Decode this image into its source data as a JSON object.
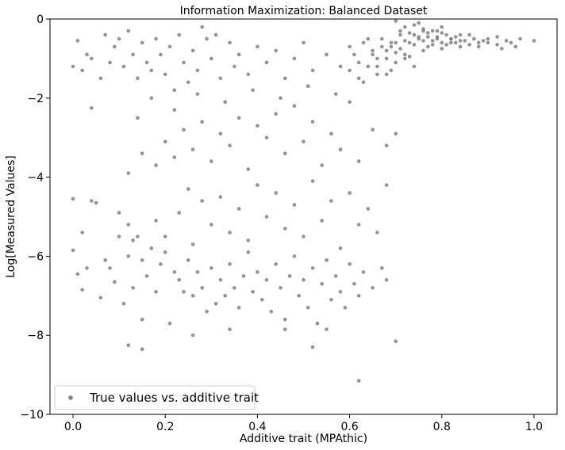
{
  "chart_data": {
    "type": "scatter",
    "title": "Information Maximization: Balanced Dataset",
    "xlabel": "Additive trait (MPAthic)",
    "ylabel": "Log[Measured Values]",
    "xlim": [
      -0.05,
      1.05
    ],
    "ylim": [
      -10,
      0
    ],
    "xticks": [
      {
        "value": 0.0,
        "label": "0.0"
      },
      {
        "value": 0.2,
        "label": "0.2"
      },
      {
        "value": 0.4,
        "label": "0.4"
      },
      {
        "value": 0.6,
        "label": "0.6"
      },
      {
        "value": 0.8,
        "label": "0.8"
      },
      {
        "value": 1.0,
        "label": "1.0"
      }
    ],
    "yticks": [
      {
        "value": 0,
        "label": "0"
      },
      {
        "value": -2,
        "label": "−2"
      },
      {
        "value": -4,
        "label": "−4"
      },
      {
        "value": -6,
        "label": "−6"
      },
      {
        "value": -8,
        "label": "−8"
      },
      {
        "value": -10,
        "label": "−10"
      }
    ],
    "grid": false,
    "legend_position": "lower-left",
    "series": [
      {
        "name": "True values vs. additive trait",
        "color": "#808080",
        "points": [
          [
            0.0,
            -5.85
          ],
          [
            0.0,
            -4.55
          ],
          [
            0.01,
            -6.45
          ],
          [
            0.02,
            -6.85
          ],
          [
            0.02,
            -5.4
          ],
          [
            0.04,
            -4.6
          ],
          [
            0.05,
            -4.65
          ],
          [
            0.03,
            -6.3
          ],
          [
            0.07,
            -6.1
          ],
          [
            0.06,
            -7.05
          ],
          [
            0.08,
            -6.3
          ],
          [
            0.09,
            -6.65
          ],
          [
            0.1,
            -5.5
          ],
          [
            0.1,
            -4.9
          ],
          [
            0.11,
            -7.2
          ],
          [
            0.12,
            -6.0
          ],
          [
            0.12,
            -5.2
          ],
          [
            0.13,
            -6.8
          ],
          [
            0.14,
            -5.5
          ],
          [
            0.15,
            -6.1
          ],
          [
            0.15,
            -7.6
          ],
          [
            0.16,
            -6.5
          ],
          [
            0.17,
            -5.8
          ],
          [
            0.18,
            -6.9
          ],
          [
            0.19,
            -6.2
          ],
          [
            0.2,
            -5.9
          ],
          [
            0.21,
            -7.7
          ],
          [
            0.22,
            -6.4
          ],
          [
            0.23,
            -6.6
          ],
          [
            0.24,
            -6.9
          ],
          [
            0.25,
            -6.1
          ],
          [
            0.26,
            -7.0
          ],
          [
            0.27,
            -6.4
          ],
          [
            0.28,
            -6.8
          ],
          [
            0.29,
            -7.4
          ],
          [
            0.3,
            -6.3
          ],
          [
            0.31,
            -7.2
          ],
          [
            0.32,
            -6.6
          ],
          [
            0.33,
            -7.0
          ],
          [
            0.34,
            -6.2
          ],
          [
            0.35,
            -6.8
          ],
          [
            0.36,
            -7.3
          ],
          [
            0.37,
            -6.5
          ],
          [
            0.38,
            -5.9
          ],
          [
            0.39,
            -6.9
          ],
          [
            0.4,
            -6.4
          ],
          [
            0.41,
            -7.1
          ],
          [
            0.42,
            -6.6
          ],
          [
            0.43,
            -7.4
          ],
          [
            0.44,
            -6.2
          ],
          [
            0.45,
            -6.8
          ],
          [
            0.46,
            -7.6
          ],
          [
            0.47,
            -6.5
          ],
          [
            0.48,
            -6.0
          ],
          [
            0.49,
            -7.0
          ],
          [
            0.5,
            -6.6
          ],
          [
            0.51,
            -7.3
          ],
          [
            0.52,
            -6.3
          ],
          [
            0.53,
            -7.7
          ],
          [
            0.54,
            -6.7
          ],
          [
            0.55,
            -6.1
          ],
          [
            0.56,
            -7.1
          ],
          [
            0.57,
            -6.5
          ],
          [
            0.58,
            -6.9
          ],
          [
            0.59,
            -7.3
          ],
          [
            0.6,
            -6.2
          ],
          [
            0.61,
            -6.7
          ],
          [
            0.62,
            -7.0
          ],
          [
            0.63,
            -6.4
          ],
          [
            0.65,
            -6.8
          ],
          [
            0.67,
            -6.3
          ],
          [
            0.68,
            -6.6
          ],
          [
            0.7,
            -8.15
          ],
          [
            0.52,
            -8.3
          ],
          [
            0.62,
            -9.15
          ],
          [
            0.12,
            -8.25
          ],
          [
            0.15,
            -8.35
          ],
          [
            0.26,
            -8.0
          ],
          [
            0.34,
            -7.85
          ],
          [
            0.46,
            -7.85
          ],
          [
            0.55,
            -7.85
          ],
          [
            0.13,
            -5.6
          ],
          [
            0.18,
            -5.1
          ],
          [
            0.2,
            -5.5
          ],
          [
            0.23,
            -4.9
          ],
          [
            0.25,
            -4.3
          ],
          [
            0.26,
            -5.7
          ],
          [
            0.28,
            -4.6
          ],
          [
            0.3,
            -5.2
          ],
          [
            0.32,
            -4.5
          ],
          [
            0.34,
            -5.4
          ],
          [
            0.36,
            -4.8
          ],
          [
            0.38,
            -5.6
          ],
          [
            0.4,
            -4.2
          ],
          [
            0.42,
            -5.0
          ],
          [
            0.44,
            -4.4
          ],
          [
            0.46,
            -5.3
          ],
          [
            0.48,
            -4.7
          ],
          [
            0.5,
            -5.5
          ],
          [
            0.52,
            -4.1
          ],
          [
            0.54,
            -5.1
          ],
          [
            0.56,
            -4.6
          ],
          [
            0.58,
            -5.8
          ],
          [
            0.6,
            -4.4
          ],
          [
            0.62,
            -5.2
          ],
          [
            0.64,
            -4.8
          ],
          [
            0.66,
            -5.4
          ],
          [
            0.68,
            -4.2
          ],
          [
            0.12,
            -3.9
          ],
          [
            0.15,
            -3.4
          ],
          [
            0.18,
            -3.7
          ],
          [
            0.2,
            -3.1
          ],
          [
            0.22,
            -3.5
          ],
          [
            0.24,
            -2.8
          ],
          [
            0.26,
            -3.3
          ],
          [
            0.28,
            -2.6
          ],
          [
            0.3,
            -3.6
          ],
          [
            0.32,
            -2.9
          ],
          [
            0.34,
            -3.2
          ],
          [
            0.36,
            -2.5
          ],
          [
            0.38,
            -3.8
          ],
          [
            0.4,
            -2.7
          ],
          [
            0.42,
            -3.0
          ],
          [
            0.44,
            -2.4
          ],
          [
            0.46,
            -3.4
          ],
          [
            0.48,
            -2.2
          ],
          [
            0.5,
            -3.1
          ],
          [
            0.52,
            -2.6
          ],
          [
            0.54,
            -3.7
          ],
          [
            0.56,
            -2.9
          ],
          [
            0.58,
            -3.3
          ],
          [
            0.6,
            -2.1
          ],
          [
            0.62,
            -3.6
          ],
          [
            0.65,
            -2.8
          ],
          [
            0.68,
            -3.2
          ],
          [
            0.7,
            -2.9
          ],
          [
            0.14,
            -2.5
          ],
          [
            0.17,
            -2.0
          ],
          [
            0.22,
            -2.3
          ],
          [
            0.27,
            -1.9
          ],
          [
            0.33,
            -2.1
          ],
          [
            0.39,
            -1.8
          ],
          [
            0.45,
            -2.0
          ],
          [
            0.51,
            -1.7
          ],
          [
            0.57,
            -1.9
          ],
          [
            0.63,
            -1.6
          ],
          [
            0.0,
            -1.2
          ],
          [
            0.01,
            -0.55
          ],
          [
            0.02,
            -1.3
          ],
          [
            0.03,
            -0.9
          ],
          [
            0.04,
            -1.0
          ],
          [
            0.04,
            -2.25
          ],
          [
            0.06,
            -1.5
          ],
          [
            0.07,
            -0.4
          ],
          [
            0.08,
            -1.1
          ],
          [
            0.09,
            -0.7
          ],
          [
            0.1,
            -0.5
          ],
          [
            0.11,
            -1.2
          ],
          [
            0.12,
            -0.3
          ],
          [
            0.13,
            -0.9
          ],
          [
            0.14,
            -1.5
          ],
          [
            0.15,
            -0.6
          ],
          [
            0.16,
            -1.1
          ],
          [
            0.17,
            -1.3
          ],
          [
            0.18,
            -0.5
          ],
          [
            0.19,
            -0.9
          ],
          [
            0.2,
            -1.4
          ],
          [
            0.21,
            -0.7
          ],
          [
            0.22,
            -1.8
          ],
          [
            0.23,
            -0.4
          ],
          [
            0.24,
            -1.1
          ],
          [
            0.25,
            -1.6
          ],
          [
            0.26,
            -0.8
          ],
          [
            0.27,
            -1.3
          ],
          [
            0.28,
            -0.2
          ],
          [
            0.29,
            -0.5
          ],
          [
            0.3,
            -1.0
          ],
          [
            0.31,
            -0.4
          ],
          [
            0.32,
            -1.5
          ],
          [
            0.34,
            -0.6
          ],
          [
            0.35,
            -1.2
          ],
          [
            0.36,
            -0.9
          ],
          [
            0.38,
            -1.4
          ],
          [
            0.4,
            -0.7
          ],
          [
            0.42,
            -1.1
          ],
          [
            0.44,
            -0.8
          ],
          [
            0.46,
            -1.5
          ],
          [
            0.48,
            -1.0
          ],
          [
            0.5,
            -0.6
          ],
          [
            0.52,
            -1.3
          ],
          [
            0.55,
            -0.9
          ],
          [
            0.58,
            -1.2
          ],
          [
            0.6,
            -0.7
          ],
          [
            0.62,
            -1.1
          ],
          [
            0.64,
            -0.5
          ],
          [
            0.66,
            -1.4
          ],
          [
            0.68,
            -0.8
          ],
          [
            0.69,
            -1.3
          ],
          [
            0.7,
            -0.6
          ],
          [
            0.72,
            -1.0
          ],
          [
            0.74,
            -0.4
          ],
          [
            0.76,
            -0.8
          ],
          [
            0.78,
            -0.3
          ],
          [
            0.8,
            -0.6
          ],
          [
            0.82,
            -0.5
          ],
          [
            0.84,
            -0.7
          ],
          [
            0.86,
            -0.4
          ],
          [
            0.88,
            -0.6
          ],
          [
            0.9,
            -0.5
          ],
          [
            0.92,
            -0.65
          ],
          [
            0.94,
            -0.55
          ],
          [
            0.96,
            -0.7
          ],
          [
            1.0,
            -0.55
          ],
          [
            0.6,
            -1.3
          ],
          [
            0.61,
            -0.9
          ],
          [
            0.62,
            -1.5
          ],
          [
            0.63,
            -0.6
          ],
          [
            0.64,
            -1.2
          ],
          [
            0.65,
            -0.8
          ],
          [
            0.66,
            -1.0
          ],
          [
            0.67,
            -0.5
          ],
          [
            0.68,
            -1.4
          ],
          [
            0.69,
            -0.7
          ],
          [
            0.7,
            -1.1
          ],
          [
            0.71,
            -0.4
          ],
          [
            0.72,
            -0.9
          ],
          [
            0.73,
            -0.6
          ],
          [
            0.74,
            -1.2
          ],
          [
            0.75,
            -0.5
          ],
          [
            0.76,
            -0.3
          ],
          [
            0.77,
            -0.7
          ],
          [
            0.78,
            -0.55
          ],
          [
            0.79,
            -0.45
          ],
          [
            0.8,
            -0.35
          ],
          [
            0.81,
            -0.65
          ],
          [
            0.82,
            -0.5
          ],
          [
            0.83,
            -0.6
          ],
          [
            0.84,
            -0.4
          ],
          [
            0.85,
            -0.55
          ],
          [
            0.86,
            -0.65
          ],
          [
            0.87,
            -0.5
          ],
          [
            0.88,
            -0.7
          ],
          [
            0.89,
            -0.55
          ],
          [
            0.9,
            -0.6
          ],
          [
            0.92,
            -0.45
          ],
          [
            0.93,
            -0.75
          ],
          [
            0.95,
            -0.6
          ],
          [
            0.97,
            -0.5
          ],
          [
            0.65,
            -0.9
          ],
          [
            0.66,
            -1.2
          ],
          [
            0.67,
            -0.7
          ],
          [
            0.68,
            -1.0
          ],
          [
            0.69,
            -0.6
          ],
          [
            0.7,
            -0.85
          ],
          [
            0.71,
            -0.75
          ],
          [
            0.72,
            -0.55
          ],
          [
            0.73,
            -0.95
          ],
          [
            0.74,
            -0.65
          ],
          [
            0.75,
            -0.45
          ],
          [
            0.76,
            -0.55
          ],
          [
            0.77,
            -0.35
          ],
          [
            0.78,
            -0.65
          ],
          [
            0.79,
            -0.5
          ],
          [
            0.8,
            -0.75
          ],
          [
            0.81,
            -0.4
          ],
          [
            0.82,
            -0.6
          ],
          [
            0.83,
            -0.45
          ],
          [
            0.84,
            -0.55
          ],
          [
            0.72,
            -0.2
          ],
          [
            0.74,
            -0.15
          ],
          [
            0.76,
            -0.25
          ],
          [
            0.7,
            -0.05
          ],
          [
            0.75,
            -0.1
          ],
          [
            0.8,
            -0.2
          ],
          [
            0.73,
            -0.35
          ],
          [
            0.77,
            -0.45
          ],
          [
            0.71,
            -0.3
          ],
          [
            0.79,
            -0.3
          ]
        ]
      }
    ]
  }
}
